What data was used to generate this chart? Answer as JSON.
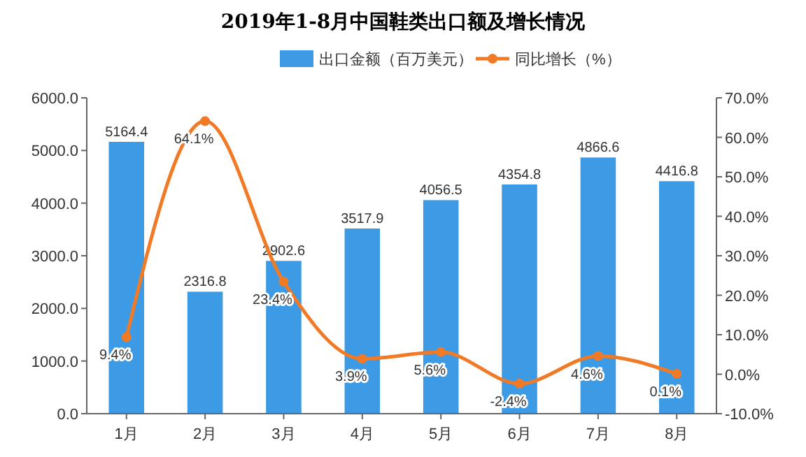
{
  "chart_data": {
    "type": "bar",
    "title": "2019年1-8月中国鞋类出口额及增长情况",
    "categories": [
      "1月",
      "2月",
      "3月",
      "4月",
      "5月",
      "6月",
      "7月",
      "8月"
    ],
    "series": [
      {
        "name": "出口金额（百万美元）",
        "color": "#3c9be4",
        "values": [
          5164.4,
          2316.8,
          2902.6,
          3517.9,
          4056.5,
          4354.8,
          4866.6,
          4416.8
        ],
        "value_labels": [
          "5164.4",
          "2316.8",
          "2902.6",
          "3517.9",
          "4056.5",
          "4354.8",
          "4866.6",
          "4416.8"
        ]
      },
      {
        "name": "同比增长（%）",
        "type": "line",
        "axis": "y2",
        "color": "#f07a26",
        "values": [
          9.4,
          64.1,
          23.4,
          3.9,
          5.6,
          -2.4,
          4.6,
          0.1
        ],
        "value_labels": [
          "9.4%",
          "64.1%",
          "23.4%",
          "3.9%",
          "5.6%",
          "-2.4%",
          "4.6%",
          "0.1%"
        ]
      }
    ],
    "ylim": [
      0,
      6000
    ],
    "yticks": [
      {
        "value": 0,
        "label": "0.0"
      },
      {
        "value": 1000,
        "label": "1000.0"
      },
      {
        "value": 2000,
        "label": "2000.0"
      },
      {
        "value": 3000,
        "label": "3000.0"
      },
      {
        "value": 4000,
        "label": "4000.0"
      },
      {
        "value": 5000,
        "label": "5000.0"
      },
      {
        "value": 6000,
        "label": "6000.0"
      }
    ],
    "y2lim": [
      -10,
      70
    ],
    "y2ticks": [
      {
        "value": -10,
        "label": "-10.0%"
      },
      {
        "value": 0,
        "label": "0.0%"
      },
      {
        "value": 10,
        "label": "10.0%"
      },
      {
        "value": 20,
        "label": "20.0%"
      },
      {
        "value": 30,
        "label": "30.0%"
      },
      {
        "value": 40,
        "label": "40.0%"
      },
      {
        "value": 50,
        "label": "50.0%"
      },
      {
        "value": 60,
        "label": "60.0%"
      },
      {
        "value": 70,
        "label": "70.0%"
      }
    ],
    "legend": "top",
    "marker": "circle",
    "grid": false
  }
}
